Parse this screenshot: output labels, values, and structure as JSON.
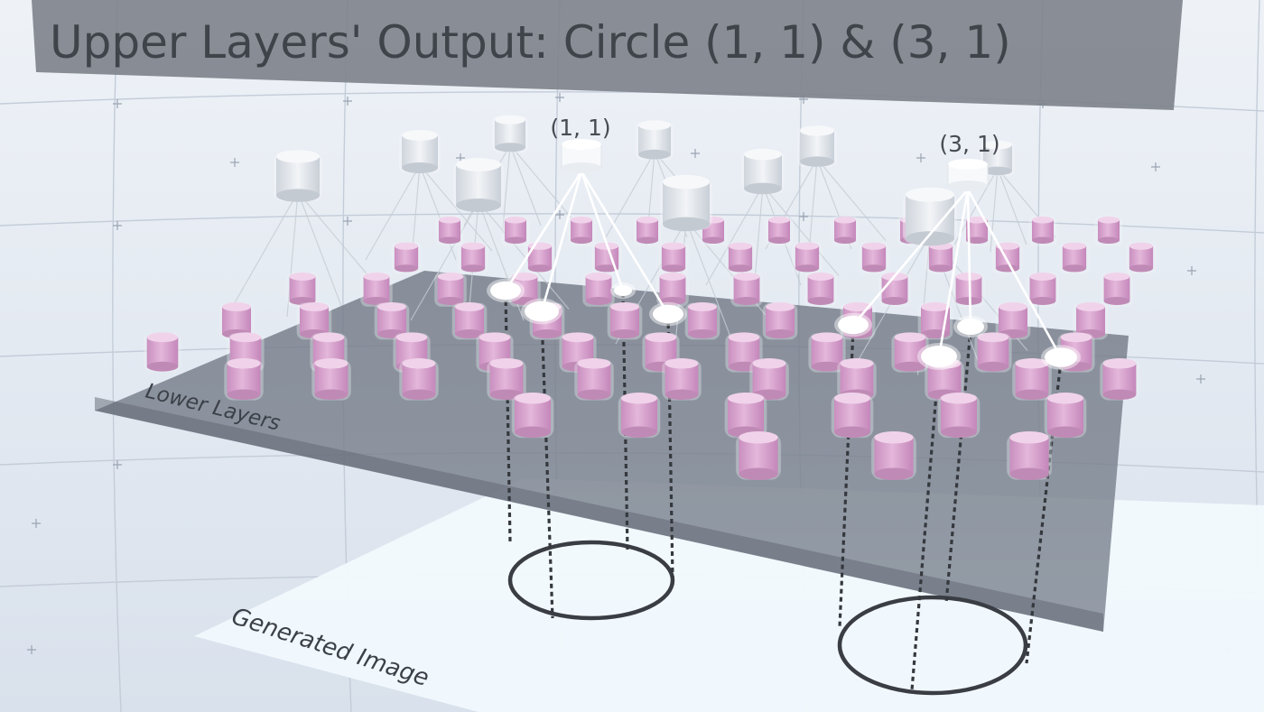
{
  "title": "Upper Layers' Output: Circle (1, 1) & (3, 1)",
  "labels": {
    "lower_layers": "Lower Layers",
    "generated_image": "Generated Image"
  },
  "upper_nodes": {
    "active_a": "(1, 1)",
    "active_b": "(3, 1)"
  },
  "colors": {
    "background": "#dfe6f0",
    "title_panel": "#7d828b",
    "lower_plane": "#6c7380",
    "image_plane": "#f2f9fd",
    "neuron_pink": "#d9a6cf",
    "neuron_shell": "#e9eef4",
    "upper_node": "#e6eaef",
    "active_glow": "#ffffff",
    "circle_stroke": "#3a3d43"
  }
}
